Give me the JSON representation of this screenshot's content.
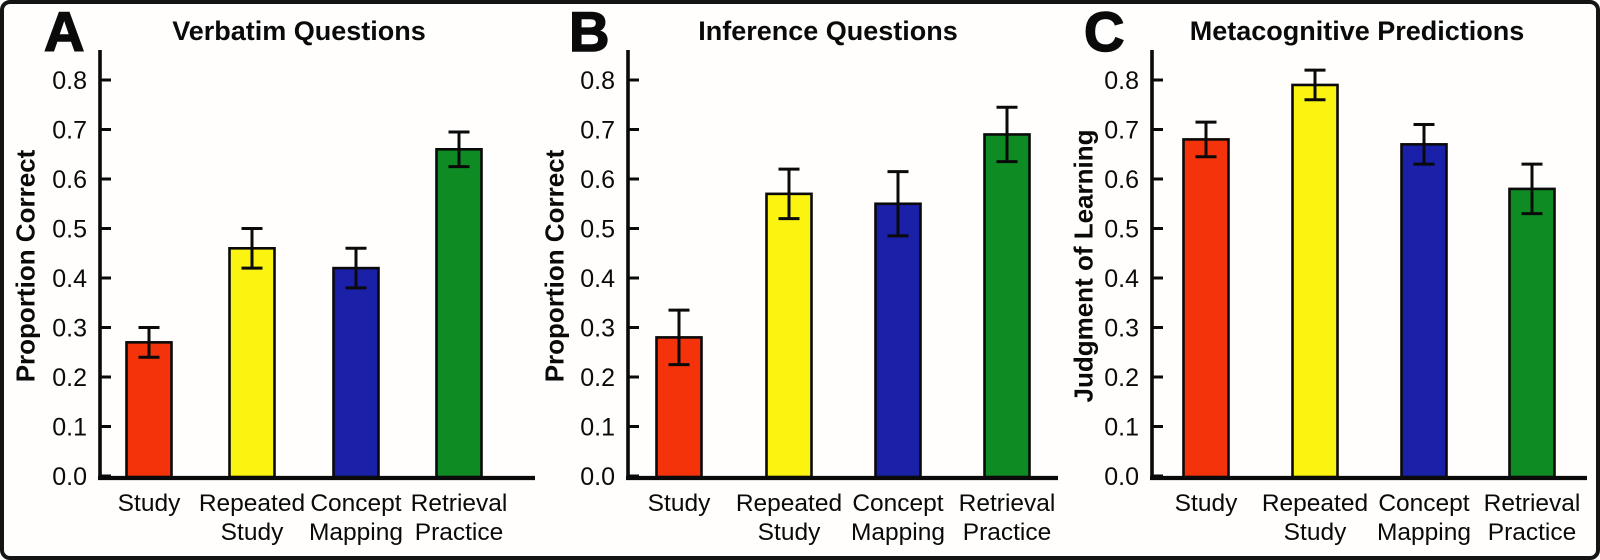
{
  "figure": {
    "background_color": "#FFFEFD",
    "border_color": "#141414"
  },
  "chart_data": [
    {
      "type": "bar",
      "panel_letter": "A",
      "title": "Verbatim Questions",
      "ylabel": "Proportion Correct",
      "xlabel": "",
      "categories": [
        "Study",
        "Repeated Study",
        "Concept Mapping",
        "Retrieval Practice"
      ],
      "category_lines": [
        [
          "Study"
        ],
        [
          "Repeated",
          "Study"
        ],
        [
          "Concept",
          "Mapping"
        ],
        [
          "Retrieval",
          "Practice"
        ]
      ],
      "values": [
        0.27,
        0.46,
        0.42,
        0.66
      ],
      "errors": [
        0.03,
        0.04,
        0.04,
        0.035
      ],
      "bar_colors": [
        "#F5330B",
        "#FBF411",
        "#1A20A8",
        "#0E8C23"
      ],
      "ylim": [
        0,
        0.86
      ],
      "yticks": [
        0.0,
        0.1,
        0.2,
        0.3,
        0.4,
        0.5,
        0.6,
        0.7,
        0.8
      ],
      "grid": false,
      "error_bars": true,
      "legend": null
    },
    {
      "type": "bar",
      "panel_letter": "B",
      "title": "Inference Questions",
      "ylabel": "Proportion Correct",
      "xlabel": "",
      "categories": [
        "Study",
        "Repeated Study",
        "Concept Mapping",
        "Retrieval Practice"
      ],
      "category_lines": [
        [
          "Study"
        ],
        [
          "Repeated",
          "Study"
        ],
        [
          "Concept",
          "Mapping"
        ],
        [
          "Retrieval",
          "Practice"
        ]
      ],
      "values": [
        0.28,
        0.57,
        0.55,
        0.69
      ],
      "errors": [
        0.055,
        0.05,
        0.065,
        0.055
      ],
      "bar_colors": [
        "#F5330B",
        "#FBF411",
        "#1A20A8",
        "#0E8C23"
      ],
      "ylim": [
        0,
        0.86
      ],
      "yticks": [
        0.0,
        0.1,
        0.2,
        0.3,
        0.4,
        0.5,
        0.6,
        0.7,
        0.8
      ],
      "grid": false,
      "error_bars": true,
      "legend": null
    },
    {
      "type": "bar",
      "panel_letter": "C",
      "title": "Metacognitive Predictions",
      "ylabel": "Judgment of Learning",
      "xlabel": "",
      "categories": [
        "Study",
        "Repeated Study",
        "Concept Mapping",
        "Retrieval Practice"
      ],
      "category_lines": [
        [
          "Study"
        ],
        [
          "Repeated",
          "Study"
        ],
        [
          "Concept",
          "Mapping"
        ],
        [
          "Retrieval",
          "Practice"
        ]
      ],
      "values": [
        0.68,
        0.79,
        0.67,
        0.58
      ],
      "errors": [
        0.035,
        0.03,
        0.04,
        0.05
      ],
      "bar_colors": [
        "#F5330B",
        "#FBF411",
        "#1A20A8",
        "#0E8C23"
      ],
      "ylim": [
        0,
        0.86
      ],
      "yticks": [
        0.0,
        0.1,
        0.2,
        0.3,
        0.4,
        0.5,
        0.6,
        0.7,
        0.8
      ],
      "grid": false,
      "error_bars": true,
      "legend": null
    }
  ]
}
